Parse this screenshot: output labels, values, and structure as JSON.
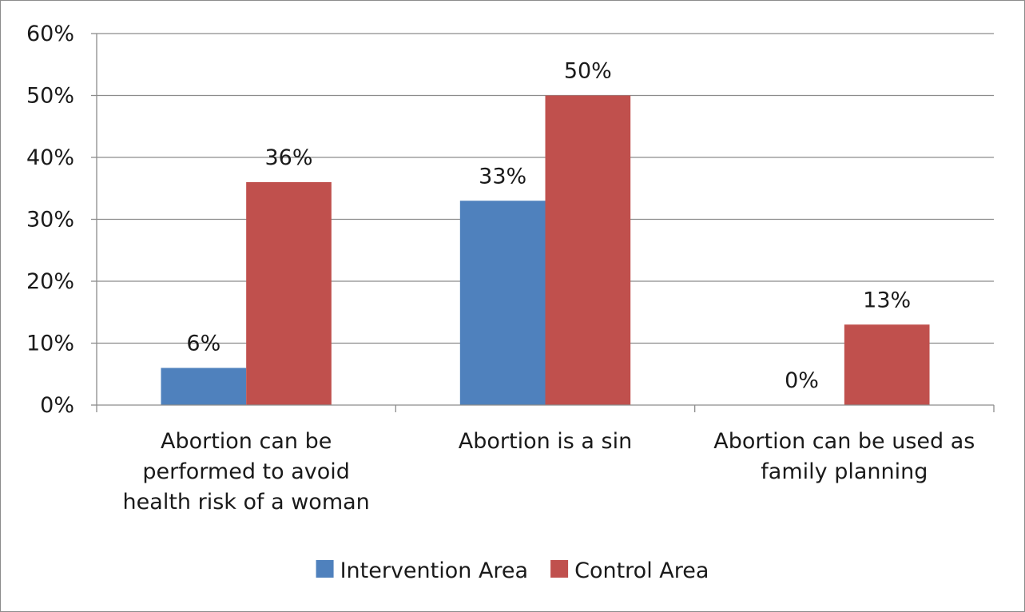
{
  "chart_data": {
    "type": "bar",
    "categories": [
      [
        "Abortion can be",
        "performed to avoid",
        "health risk of a woman"
      ],
      [
        "Abortion is a sin"
      ],
      [
        "Abortion can be used as",
        "family planning"
      ]
    ],
    "series": [
      {
        "name": "Intervention Area",
        "color": "#4f81bd",
        "values": [
          6,
          33,
          0
        ],
        "labels": [
          "6%",
          "33%",
          "0%"
        ]
      },
      {
        "name": "Control Area",
        "color": "#c0504d",
        "values": [
          36,
          50,
          13
        ],
        "labels": [
          "36%",
          "50%",
          "13%"
        ]
      }
    ],
    "ylim": [
      0,
      60
    ],
    "yticks": [
      0,
      10,
      20,
      30,
      40,
      50,
      60
    ],
    "ytick_labels": [
      "0%",
      "10%",
      "20%",
      "30%",
      "40%",
      "50%",
      "60%"
    ],
    "grid": true,
    "legend": "bottom"
  }
}
